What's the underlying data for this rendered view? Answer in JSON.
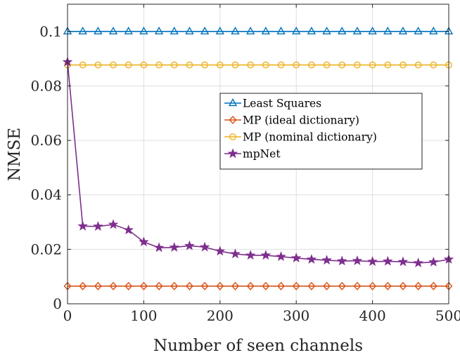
{
  "chart_data": {
    "type": "line",
    "xlabel": "Number of seen channels",
    "ylabel": "NMSE",
    "xlim": [
      0,
      500
    ],
    "ylim": [
      0,
      0.11
    ],
    "xticks": [
      0,
      100,
      200,
      300,
      400,
      500
    ],
    "xtick_labels": [
      "0",
      "100",
      "200",
      "300",
      "400",
      "500"
    ],
    "yticks": [
      0,
      0.02,
      0.04,
      0.06,
      0.08,
      0.1
    ],
    "ytick_labels": [
      "0",
      "0.02",
      "0.04",
      "0.06",
      "0.08",
      "0.1"
    ],
    "grid": true,
    "legend_position": "top-right",
    "x": [
      0,
      20,
      40,
      60,
      80,
      100,
      120,
      140,
      160,
      180,
      200,
      220,
      240,
      260,
      280,
      300,
      320,
      340,
      360,
      380,
      400,
      420,
      440,
      460,
      480,
      500
    ],
    "series": [
      {
        "name": "Least Squares",
        "color": "#0072BD",
        "marker": "triangle",
        "values": [
          0.1,
          0.1,
          0.1,
          0.1,
          0.1,
          0.1,
          0.1,
          0.1,
          0.1,
          0.1,
          0.1,
          0.1,
          0.1,
          0.1,
          0.1,
          0.1,
          0.1,
          0.1,
          0.1,
          0.1,
          0.1,
          0.1,
          0.1,
          0.1,
          0.1,
          0.1
        ]
      },
      {
        "name": "MP (ideal dictionary)",
        "color": "#D95319",
        "marker": "diamond",
        "values": [
          0.0065,
          0.0065,
          0.0065,
          0.0065,
          0.0065,
          0.0065,
          0.0065,
          0.0065,
          0.0065,
          0.0065,
          0.0065,
          0.0065,
          0.0065,
          0.0065,
          0.0065,
          0.0065,
          0.0065,
          0.0065,
          0.0065,
          0.0065,
          0.0065,
          0.0065,
          0.0065,
          0.0065,
          0.0065,
          0.0065
        ]
      },
      {
        "name": "MP (nominal dictionary)",
        "color": "#EDB120",
        "marker": "circle",
        "values": [
          0.0877,
          0.0877,
          0.0877,
          0.0877,
          0.0877,
          0.0877,
          0.0877,
          0.0877,
          0.0877,
          0.0877,
          0.0877,
          0.0877,
          0.0877,
          0.0877,
          0.0877,
          0.0877,
          0.0877,
          0.0877,
          0.0877,
          0.0877,
          0.0877,
          0.0877,
          0.0877,
          0.0877,
          0.0877,
          0.0877
        ]
      },
      {
        "name": "mpNet",
        "color": "#7E2F8E",
        "marker": "star",
        "values": [
          0.0888,
          0.0285,
          0.0284,
          0.0291,
          0.0271,
          0.0227,
          0.0206,
          0.0207,
          0.0213,
          0.0208,
          0.0193,
          0.0183,
          0.0178,
          0.0178,
          0.0173,
          0.0168,
          0.0163,
          0.016,
          0.0157,
          0.0158,
          0.0155,
          0.0156,
          0.0154,
          0.015,
          0.0153,
          0.0163
        ]
      }
    ]
  }
}
